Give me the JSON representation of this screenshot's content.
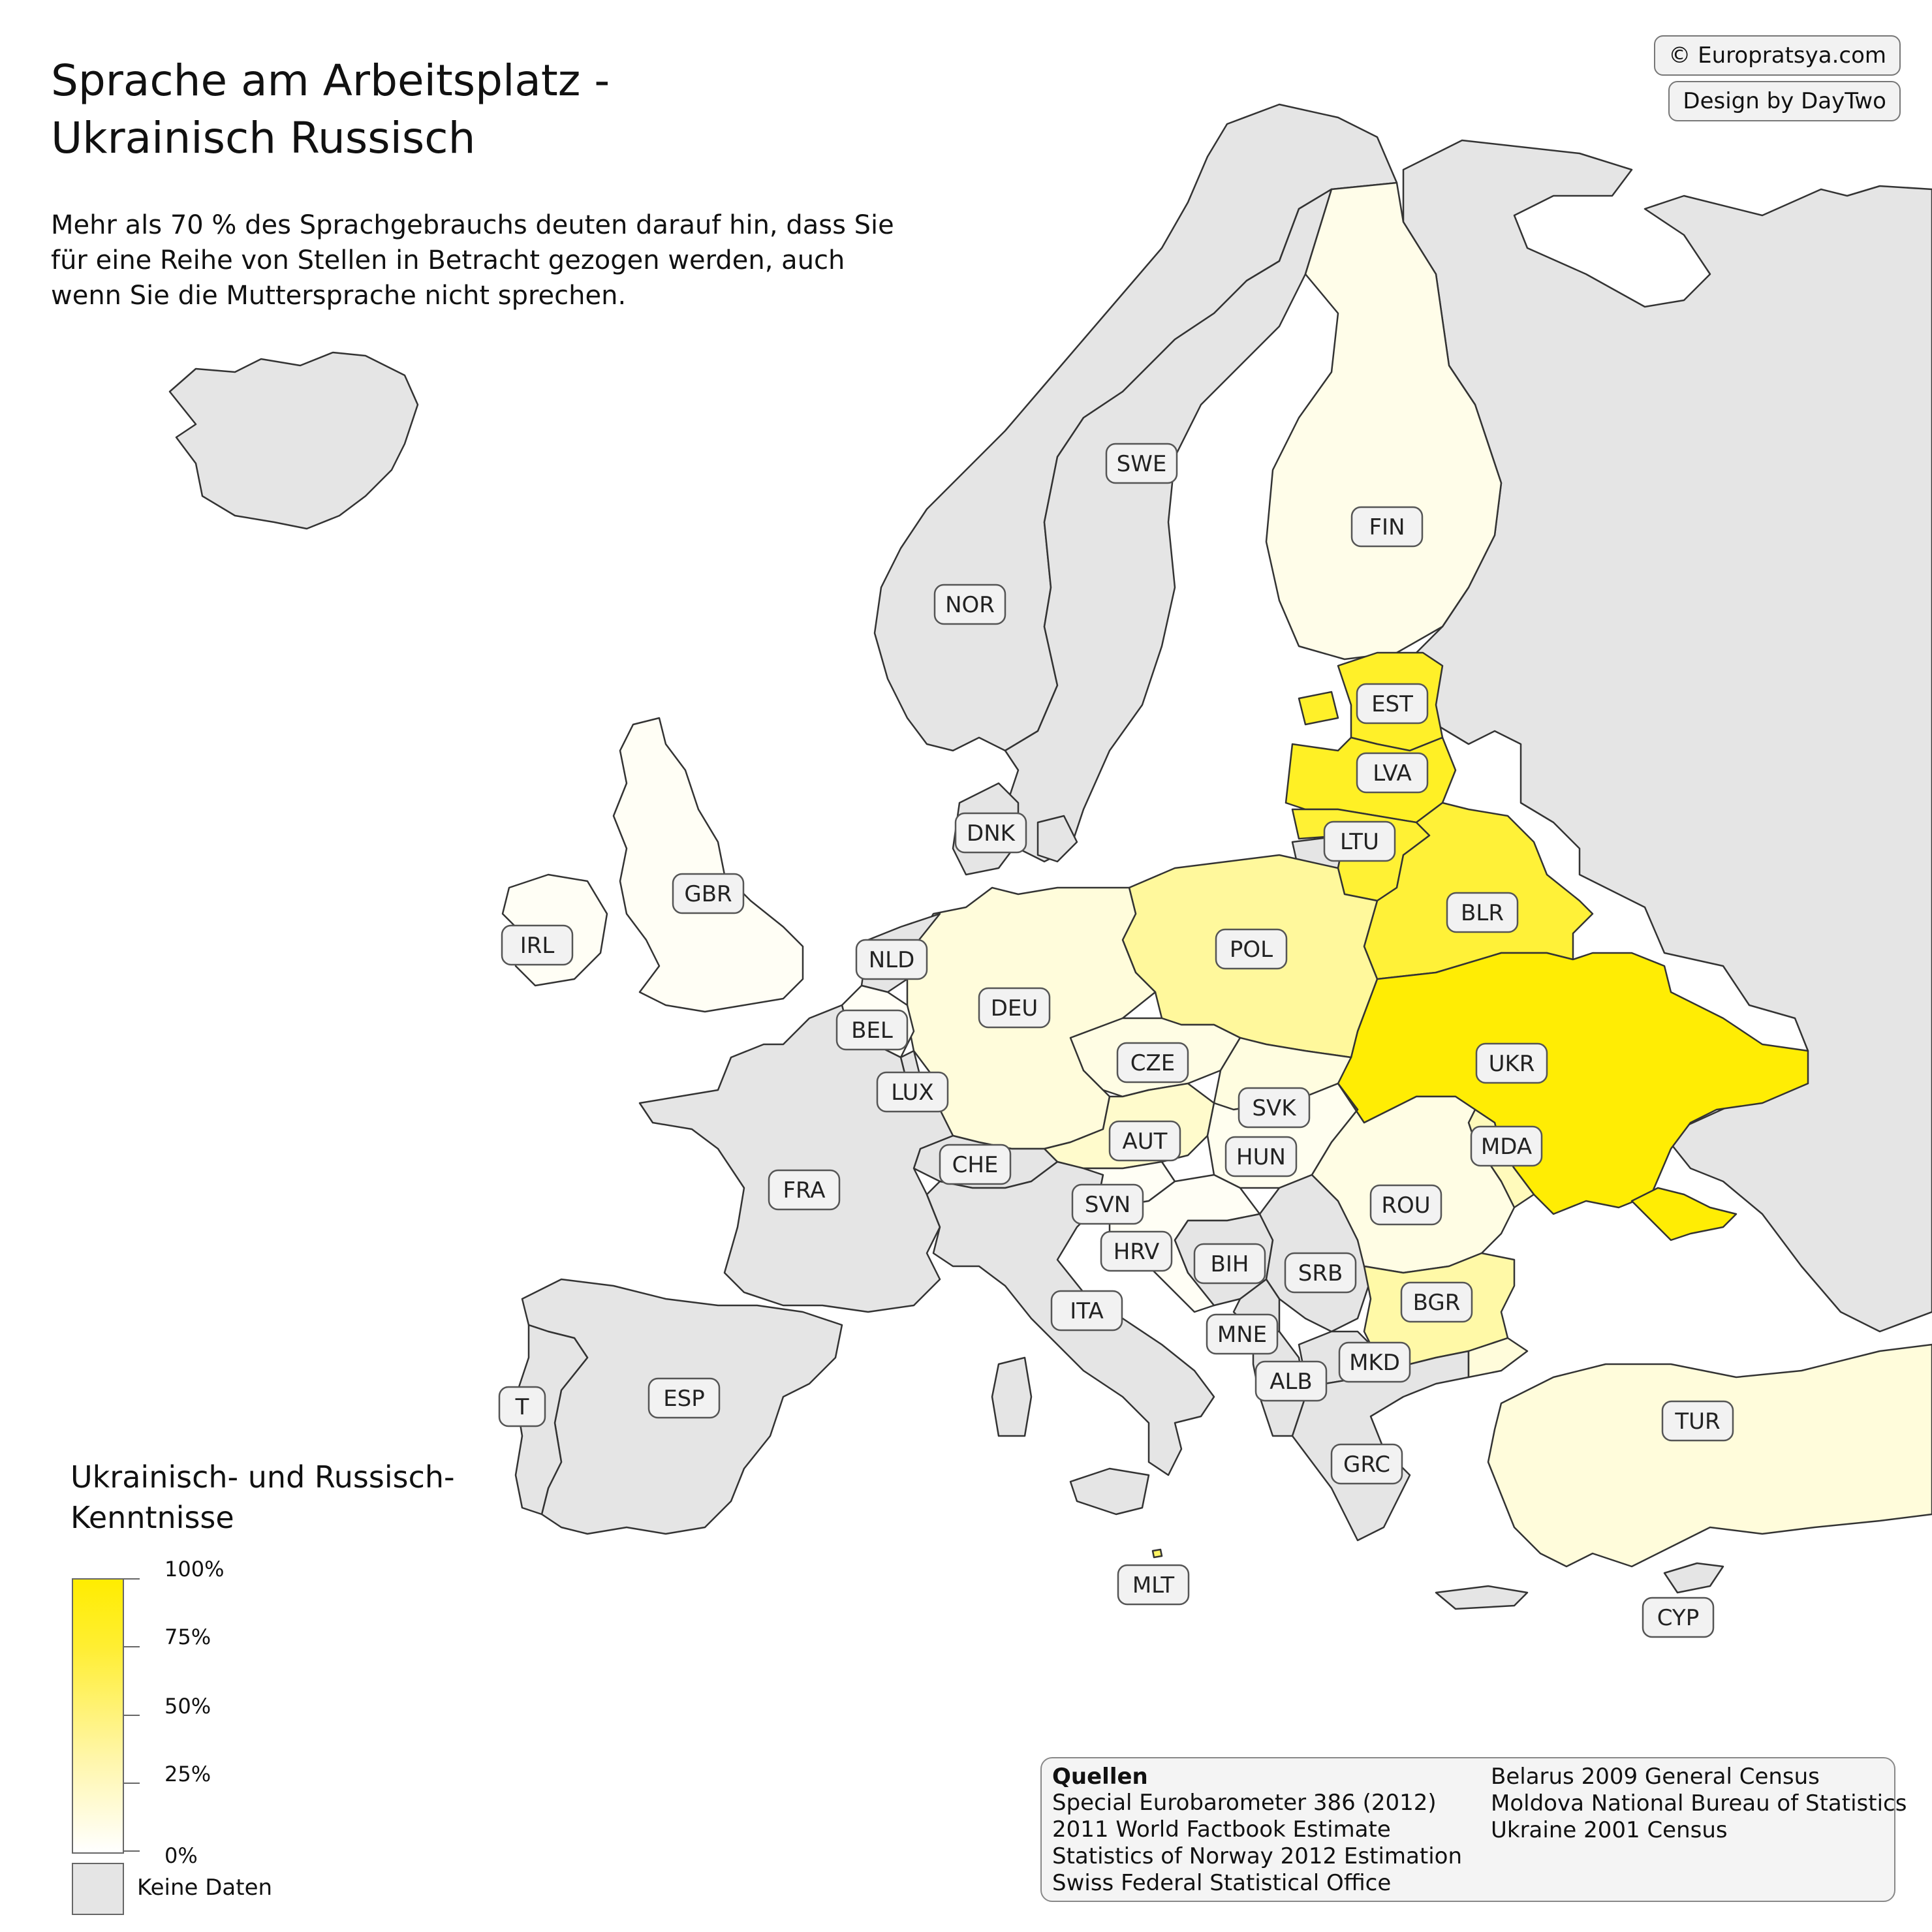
{
  "title_line1": "Sprache am Arbeitsplatz -",
  "title_line2": "Ukrainisch Russisch",
  "subtitle": "Mehr als 70 % des Sprachgebrauchs deuten darauf hin, dass Sie für eine Reihe von Stellen in Betracht gezogen werden, auch wenn Sie die Muttersprache nicht sprechen.",
  "credits": {
    "site": "© Europratsya.com",
    "design": "Design by DayTwo"
  },
  "legend": {
    "title": "Ukrainisch- und Russisch-Kenntnisse",
    "ticks": [
      "100%",
      "75%",
      "50%",
      "25%",
      "0%"
    ],
    "no_data": "Keine Daten",
    "colors": {
      "low": "#ffffff",
      "high": "#ffed00",
      "no_data": "#e5e5e5"
    }
  },
  "sources": {
    "heading": "Quellen",
    "col1": [
      "Special Eurobarometer 386 (2012)",
      "2011 World Factbook Estimate",
      "Statistics of Norway 2012 Estimation",
      "Swiss Federal Statistical Office"
    ],
    "col2": [
      "Belarus 2009 General Census",
      "Moldova National Bureau of Statistics",
      "Ukraine 2001 Census"
    ]
  },
  "countries": {
    "ISL": {
      "label": "",
      "value": null
    },
    "NOR": {
      "label": "NOR",
      "value": null
    },
    "SWE": {
      "label": "SWE",
      "value": null
    },
    "FIN": {
      "label": "FIN",
      "value": 0.03
    },
    "EST": {
      "label": "EST",
      "value": 0.78
    },
    "LVA": {
      "label": "LVA",
      "value": 0.8
    },
    "LTU": {
      "label": "LTU",
      "value": 0.72
    },
    "BLR": {
      "label": "BLR",
      "value": 0.7
    },
    "UKR": {
      "label": "UKR",
      "value": 0.98
    },
    "MDA": {
      "label": "MDA",
      "value": 0.15
    },
    "POL": {
      "label": "POL",
      "value": 0.26
    },
    "GBR": {
      "label": "GBR",
      "value": 0.01
    },
    "IRL": {
      "label": "IRL",
      "value": 0.01
    },
    "DNK": {
      "label": "DNK",
      "value": null
    },
    "NLD": {
      "label": "NLD",
      "value": null
    },
    "BEL": {
      "label": "BEL",
      "value": 0.01
    },
    "LUX": {
      "label": "LUX",
      "value": null
    },
    "DEU": {
      "label": "DEU",
      "value": 0.06
    },
    "CZE": {
      "label": "CZE",
      "value": 0.04
    },
    "SVK": {
      "label": "SVK",
      "value": 0.05
    },
    "AUT": {
      "label": "AUT",
      "value": 0.1
    },
    "HUN": {
      "label": "HUN",
      "value": 0.02
    },
    "CHE": {
      "label": "CHE",
      "value": null
    },
    "FRA": {
      "label": "FRA",
      "value": null
    },
    "SVN": {
      "label": "SVN",
      "value": 0.01
    },
    "HRV": {
      "label": "HRV",
      "value": 0.01
    },
    "BIH": {
      "label": "BIH",
      "value": null
    },
    "SRB": {
      "label": "SRB",
      "value": null
    },
    "MNE": {
      "label": "MNE",
      "value": null
    },
    "ALB": {
      "label": "ALB",
      "value": null
    },
    "MKD": {
      "label": "MKD",
      "value": null
    },
    "ROU": {
      "label": "ROU",
      "value": 0.04
    },
    "BGR": {
      "label": "BGR",
      "value": 0.22
    },
    "ITA": {
      "label": "ITA",
      "value": null
    },
    "ESP": {
      "label": "ESP",
      "value": null
    },
    "PRT": {
      "label": "T",
      "value": null
    },
    "GRC": {
      "label": "GRC",
      "value": null
    },
    "TUR": {
      "label": "TUR",
      "value": 0.06
    },
    "MLT": {
      "label": "MLT",
      "value": 0.5
    },
    "CYP": {
      "label": "CYP",
      "value": null
    },
    "RUS": {
      "label": "",
      "value": null
    }
  }
}
